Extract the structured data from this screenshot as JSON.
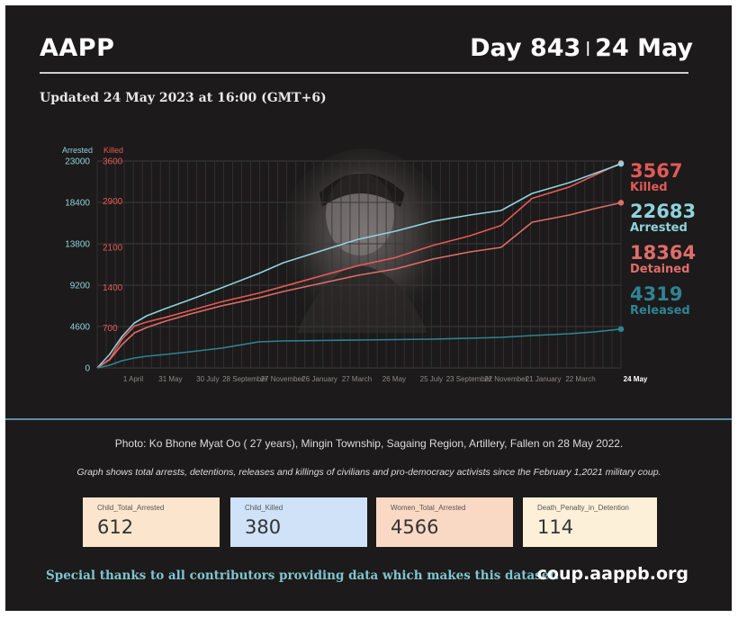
{
  "header": {
    "org": "AAPP",
    "day_label": "Day 843",
    "separator": "|",
    "date": "24 May",
    "updated": "Updated 24 May 2023 at 16:00 (GMT+6)"
  },
  "colors": {
    "background": "#1c1a1a",
    "arrested": "#8fd3dc",
    "killed": "#e25a57",
    "detained": "#e06d69",
    "released": "#2f8494"
  },
  "chart_data": {
    "type": "line",
    "axis_left_title": "Arrested",
    "axis_right_title": "Killed",
    "yticks_arrested": [
      "23000",
      "18400",
      "13800",
      "9200",
      "4600",
      "0"
    ],
    "yticks_killed": [
      "3600",
      "2900",
      "2100",
      "1400",
      "700"
    ],
    "ylim_arrested": [
      0,
      23000
    ],
    "ylim_killed": [
      0,
      3600
    ],
    "x_ticks": [
      "1 April",
      "31 May",
      "30 July",
      "28 September",
      "27 November",
      "26 January",
      "27 March",
      "26 May",
      "25 July",
      "23 September",
      "22 November",
      "21 January",
      "22 March",
      "24 May"
    ],
    "x_range_days": [
      0,
      843
    ],
    "grid": true,
    "series": [
      {
        "name": "Killed",
        "axis": "killed",
        "color": "#e25a57",
        "x": [
          0,
          20,
          40,
          60,
          80,
          110,
          150,
          200,
          260,
          300,
          360,
          420,
          480,
          540,
          600,
          650,
          700,
          760,
          800,
          843
        ],
        "y": [
          0,
          150,
          500,
          730,
          800,
          880,
          1000,
          1150,
          1300,
          1420,
          1600,
          1780,
          1920,
          2130,
          2300,
          2480,
          2950,
          3150,
          3350,
          3567
        ]
      },
      {
        "name": "Arrested",
        "axis": "arrested",
        "color": "#8fd3dc",
        "x": [
          0,
          20,
          40,
          60,
          80,
          110,
          150,
          200,
          260,
          300,
          360,
          420,
          480,
          540,
          600,
          650,
          700,
          760,
          800,
          843
        ],
        "y": [
          0,
          1500,
          3500,
          5000,
          5800,
          6600,
          7600,
          8900,
          10500,
          11700,
          13000,
          14300,
          15200,
          16300,
          17000,
          17500,
          19400,
          20600,
          21600,
          22683
        ]
      },
      {
        "name": "Detained",
        "axis": "arrested",
        "color": "#e06d69",
        "x": [
          0,
          20,
          40,
          60,
          80,
          110,
          150,
          200,
          260,
          300,
          360,
          420,
          480,
          540,
          600,
          650,
          700,
          760,
          800,
          843
        ],
        "y": [
          0,
          900,
          2600,
          3900,
          4500,
          5200,
          6000,
          6900,
          7800,
          8500,
          9400,
          10300,
          11000,
          12100,
          12900,
          13400,
          16200,
          17000,
          17700,
          18364
        ]
      },
      {
        "name": "Released",
        "axis": "arrested",
        "color": "#2f8494",
        "x": [
          0,
          20,
          40,
          60,
          80,
          110,
          150,
          200,
          260,
          300,
          360,
          420,
          480,
          540,
          600,
          650,
          700,
          760,
          800,
          843
        ],
        "y": [
          0,
          300,
          800,
          1100,
          1300,
          1500,
          1800,
          2200,
          2900,
          3000,
          3050,
          3100,
          3150,
          3200,
          3300,
          3400,
          3600,
          3800,
          4000,
          4319
        ]
      }
    ],
    "end_labels": [
      {
        "value": "3567",
        "label": "Killed",
        "color": "#e25a57"
      },
      {
        "value": "22683",
        "label": "Arrested",
        "color": "#8fd3dc"
      },
      {
        "value": "18364",
        "label": "Detained",
        "color": "#e06d69"
      },
      {
        "value": "4319",
        "label": "Released",
        "color": "#2f8494"
      }
    ]
  },
  "captions": {
    "photo": "Photo: Ko Bhone Myat Oo ( 27 years), Mingin Township, Sagaing Region, Artillery, Fallen on 28 May 2022.",
    "graph_note": "Graph shows total arrests, detentions, releases and killings of civilians and pro-democracy activists since the February 1,2021 military coup."
  },
  "stats": [
    {
      "label": "Child_Total_Arrested",
      "value": "612",
      "bg": "#fce5cd"
    },
    {
      "label": "Child_Killed",
      "value": "380",
      "bg": "#cfe2f7"
    },
    {
      "label": "Women_Total_Arrested",
      "value": "4566",
      "bg": "#fad9c4"
    },
    {
      "label": "Death_Penalty_in_Detention",
      "value": "114",
      "bg": "#fdf0d9"
    }
  ],
  "footer": {
    "thanks": "Special thanks to all contributors providing data which makes this dataset.",
    "site": "coup.aappb.org"
  }
}
